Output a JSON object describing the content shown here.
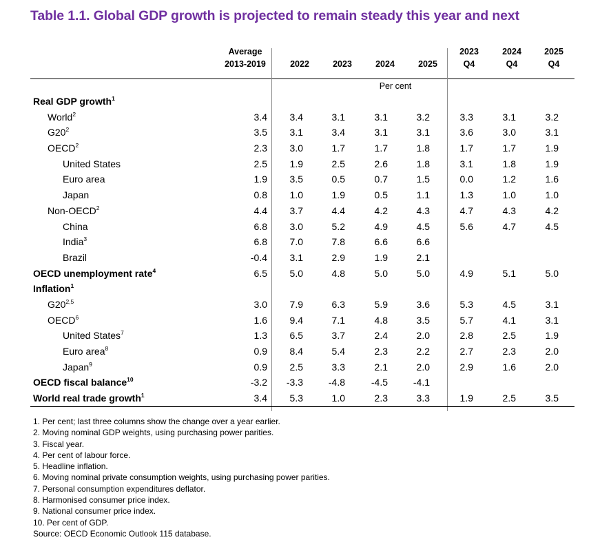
{
  "title": "Table 1.1. Global GDP growth is projected to remain steady this year and next",
  "columns": [
    {
      "line1": "Average",
      "line2": "2013-2019"
    },
    {
      "line1": "",
      "line2": "2022"
    },
    {
      "line1": "",
      "line2": "2023"
    },
    {
      "line1": "",
      "line2": "2024"
    },
    {
      "line1": "",
      "line2": "2025"
    },
    {
      "line1": "2023",
      "line2": "Q4"
    },
    {
      "line1": "2024",
      "line2": "Q4"
    },
    {
      "line1": "2025",
      "line2": "Q4"
    }
  ],
  "unit_label": "Per cent",
  "rows": [
    {
      "label": "Real GDP growth",
      "sup": "1",
      "level": 0,
      "values": [
        "",
        "",
        "",
        "",
        "",
        "",
        "",
        ""
      ]
    },
    {
      "label": "World",
      "sup": "2",
      "level": 1,
      "values": [
        "3.4",
        "3.4",
        "3.1",
        "3.1",
        "3.2",
        "3.3",
        "3.1",
        "3.2"
      ]
    },
    {
      "label": "G20",
      "sup": "2",
      "level": 1,
      "values": [
        "3.5",
        "3.1",
        "3.4",
        "3.1",
        "3.1",
        "3.6",
        "3.0",
        "3.1"
      ]
    },
    {
      "label": "OECD",
      "sup": "2",
      "level": 1,
      "values": [
        "2.3",
        "3.0",
        "1.7",
        "1.7",
        "1.8",
        "1.7",
        "1.7",
        "1.9"
      ]
    },
    {
      "label": "United States",
      "sup": "",
      "level": 2,
      "values": [
        "2.5",
        "1.9",
        "2.5",
        "2.6",
        "1.8",
        "3.1",
        "1.8",
        "1.9"
      ]
    },
    {
      "label": "Euro area",
      "sup": "",
      "level": 2,
      "values": [
        "1.9",
        "3.5",
        "0.5",
        "0.7",
        "1.5",
        "0.0",
        "1.2",
        "1.6"
      ]
    },
    {
      "label": "Japan",
      "sup": "",
      "level": 2,
      "values": [
        "0.8",
        "1.0",
        "1.9",
        "0.5",
        "1.1",
        "1.3",
        "1.0",
        "1.0"
      ]
    },
    {
      "label": "Non-OECD",
      "sup": "2",
      "level": 1,
      "values": [
        "4.4",
        "3.7",
        "4.4",
        "4.2",
        "4.3",
        "4.7",
        "4.3",
        "4.2"
      ]
    },
    {
      "label": "China",
      "sup": "",
      "level": 2,
      "values": [
        "6.8",
        "3.0",
        "5.2",
        "4.9",
        "4.5",
        "5.6",
        "4.7",
        "4.5"
      ]
    },
    {
      "label": "India",
      "sup": "3",
      "level": 2,
      "values": [
        "6.8",
        "7.0",
        "7.8",
        "6.6",
        "6.6",
        "",
        "",
        ""
      ]
    },
    {
      "label": "Brazil",
      "sup": "",
      "level": 2,
      "values": [
        "-0.4",
        "3.1",
        "2.9",
        "1.9",
        "2.1",
        "",
        "",
        ""
      ]
    },
    {
      "label": "OECD unemployment rate",
      "sup": "4",
      "level": 0,
      "values": [
        "6.5",
        "5.0",
        "4.8",
        "5.0",
        "5.0",
        "4.9",
        "5.1",
        "5.0"
      ]
    },
    {
      "label": "Inflation",
      "sup": "1",
      "level": 0,
      "values": [
        "",
        "",
        "",
        "",
        "",
        "",
        "",
        ""
      ]
    },
    {
      "label": "G20",
      "sup": "2,5",
      "level": 1,
      "values": [
        "3.0",
        "7.9",
        "6.3",
        "5.9",
        "3.6",
        "5.3",
        "4.5",
        "3.1"
      ]
    },
    {
      "label": "OECD",
      "sup": "6",
      "level": 1,
      "values": [
        "1.6",
        "9.4",
        "7.1",
        "4.8",
        "3.5",
        "5.7",
        "4.1",
        "3.1"
      ]
    },
    {
      "label": "United States",
      "sup": "7",
      "level": 2,
      "values": [
        "1.3",
        "6.5",
        "3.7",
        "2.4",
        "2.0",
        "2.8",
        "2.5",
        "1.9"
      ]
    },
    {
      "label": "Euro area",
      "sup": "8",
      "level": 2,
      "values": [
        "0.9",
        "8.4",
        "5.4",
        "2.3",
        "2.2",
        "2.7",
        "2.3",
        "2.0"
      ]
    },
    {
      "label": "Japan",
      "sup": "9",
      "level": 2,
      "values": [
        "0.9",
        "2.5",
        "3.3",
        "2.1",
        "2.0",
        "2.9",
        "1.6",
        "2.0"
      ]
    },
    {
      "label": "OECD fiscal balance",
      "sup": "10",
      "level": 0,
      "values": [
        "-3.2",
        "-3.3",
        "-4.8",
        "-4.5",
        "-4.1",
        "",
        "",
        ""
      ]
    },
    {
      "label": "World real trade growth",
      "sup": "1",
      "level": 0,
      "values": [
        "3.4",
        "5.3",
        "1.0",
        "2.3",
        "3.3",
        "1.9",
        "2.5",
        "3.5"
      ]
    }
  ],
  "footnotes": [
    "1. Per cent; last three columns show the change over a year earlier.",
    "2. Moving nominal GDP weights, using purchasing power parities.",
    "3. Fiscal year.",
    "4. Per cent of labour force.",
    "5. Headline inflation.",
    "6. Moving nominal private consumption weights, using purchasing power parities.",
    "7. Personal consumption expenditures deflator.",
    "8. Harmonised consumer price index.",
    "9. National consumer price index.",
    "10.  Per cent of GDP."
  ],
  "source": "Source: OECD Economic Outlook 115 database."
}
